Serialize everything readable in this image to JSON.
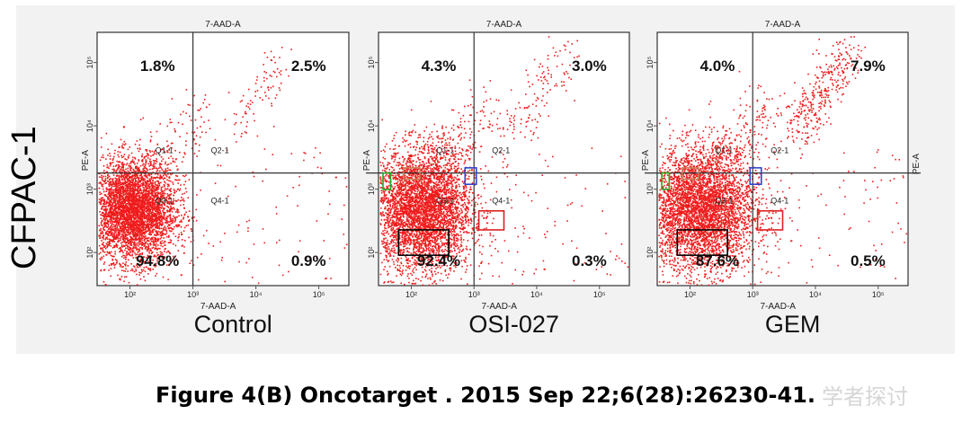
{
  "row_label": "CFPAC-1",
  "caption": "Figure 4(B) Oncotarget . 2015 Sep 22;6(28):26230-41.",
  "watermark": "学者探讨",
  "chart_data": [
    {
      "type": "scatter",
      "name": "Control",
      "xlabel": "7-AAD-A",
      "ylabel": "PE-A",
      "top_label": "7-AAD-A",
      "right_label": "",
      "x_ticks": [
        "10²",
        "10³",
        "10⁴",
        "10⁵"
      ],
      "y_ticks": [
        "10²",
        "10³",
        "10⁴",
        "10⁵"
      ],
      "xlim": [
        30,
        300000
      ],
      "ylim": [
        30,
        300000
      ],
      "gate": {
        "x": 1000,
        "y": 1800
      },
      "scale": "log",
      "gate_labels": [
        "Q1-1",
        "Q2-1",
        "Q3-1",
        "Q4-1"
      ],
      "quadrants": {
        "Q1": "1.8%",
        "Q2": "2.5%",
        "Q3": "94.8%",
        "Q4": "0.9%"
      },
      "point_color": "#ee1c1c",
      "boxes": []
    },
    {
      "type": "scatter",
      "name": "OSI-027",
      "xlabel": "7-AAD-A",
      "ylabel": "PE-A",
      "top_label": "7-AAD-A",
      "right_label": "",
      "x_ticks": [
        "10²",
        "10³",
        "10⁴",
        "10⁵"
      ],
      "y_ticks": [
        "10²",
        "10³",
        "10⁴",
        "10⁵"
      ],
      "xlim": [
        30,
        300000
      ],
      "ylim": [
        30,
        300000
      ],
      "gate": {
        "x": 1000,
        "y": 1800
      },
      "scale": "log",
      "gate_labels": [
        "Q1-1",
        "Q2-1",
        "Q3-1",
        "Q4-1"
      ],
      "quadrants": {
        "Q1": "4.3%",
        "Q2": "3.0%",
        "Q3": "92.4%",
        "Q4": "0.3%"
      },
      "point_color": "#ee1c1c",
      "boxes": [
        {
          "color": "#c8825a"
        },
        {
          "color": "#22aa22"
        },
        {
          "color": "#3344cc"
        },
        {
          "color": "#dd2222"
        },
        {
          "color": "#000000"
        }
      ]
    },
    {
      "type": "scatter",
      "name": "GEM",
      "xlabel": "7-AAD-A",
      "ylabel": "PE-A",
      "top_label": "7-AAD-A",
      "right_label": "PE-A",
      "x_ticks": [
        "10²",
        "10³",
        "10⁴",
        "10⁵"
      ],
      "y_ticks": [
        "10²",
        "10³",
        "10⁴",
        "10⁵"
      ],
      "xlim": [
        30,
        300000
      ],
      "ylim": [
        30,
        300000
      ],
      "gate": {
        "x": 1000,
        "y": 1800
      },
      "scale": "log",
      "gate_labels": [
        "Q1-1",
        "Q2-1",
        "Q3-1",
        "Q4-1"
      ],
      "quadrants": {
        "Q1": "4.0%",
        "Q2": "7.9%",
        "Q3": "87.6%",
        "Q4": "0.5%"
      },
      "point_color": "#ee1c1c",
      "boxes": [
        {
          "color": "#c8825a"
        },
        {
          "color": "#22aa22"
        },
        {
          "color": "#3344cc"
        },
        {
          "color": "#dd2222"
        },
        {
          "color": "#000000"
        }
      ]
    }
  ]
}
